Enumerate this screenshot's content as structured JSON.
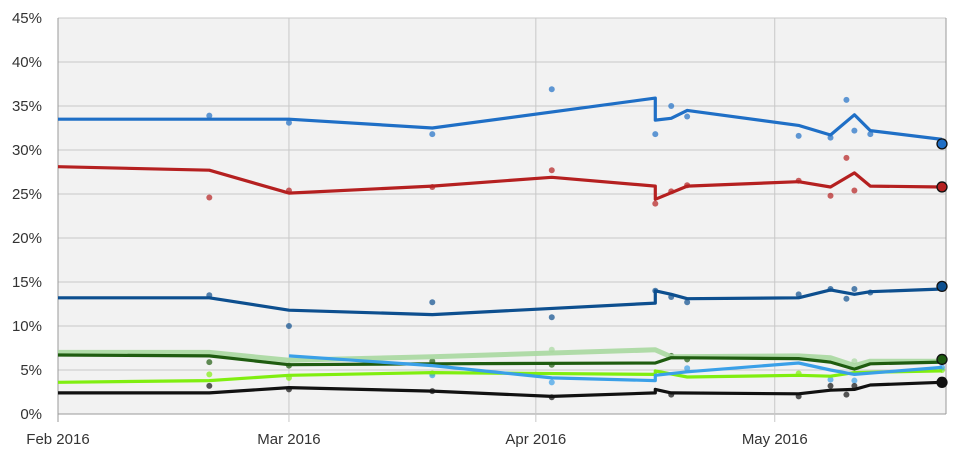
{
  "chart_data": {
    "type": "line",
    "title": "",
    "xlabel": "",
    "ylabel": "",
    "ylim": [
      0,
      45
    ],
    "xlim": [
      "2016-02-01",
      "2016-05-22"
    ],
    "grid": true,
    "legend": "none",
    "y_ticks": [
      "0%",
      "5%",
      "10%",
      "15%",
      "20%",
      "25%",
      "30%",
      "35%",
      "40%",
      "45%"
    ],
    "x_ticks": [
      {
        "date": "2016-02-01",
        "label": "Feb 2016"
      },
      {
        "date": "2016-03-01",
        "label": "Mar 2016"
      },
      {
        "date": "2016-04-01",
        "label": "Apr 2016"
      },
      {
        "date": "2016-05-01",
        "label": "May 2016"
      }
    ],
    "series": [
      {
        "color": "#1f6fc6",
        "end_marker": true,
        "line": [
          [
            "2016-02-01",
            33.5
          ],
          [
            "2016-02-20",
            33.5
          ],
          [
            "2016-03-01",
            33.5
          ],
          [
            "2016-03-19",
            32.5
          ],
          [
            "2016-04-16",
            35.9
          ],
          [
            "2016-04-16",
            33.4
          ],
          [
            "2016-04-18",
            33.6
          ],
          [
            "2016-04-20",
            34.5
          ],
          [
            "2016-05-04",
            32.8
          ],
          [
            "2016-05-08",
            31.7
          ],
          [
            "2016-05-11",
            34.0
          ],
          [
            "2016-05-13",
            32.2
          ],
          [
            "2016-05-22",
            31.2
          ]
        ],
        "points": [
          [
            "2016-02-20",
            33.9
          ],
          [
            "2016-03-01",
            33.1
          ],
          [
            "2016-03-19",
            31.8
          ],
          [
            "2016-04-03",
            36.9
          ],
          [
            "2016-04-16",
            31.8
          ],
          [
            "2016-04-18",
            35.0
          ],
          [
            "2016-04-20",
            33.8
          ],
          [
            "2016-05-04",
            31.6
          ],
          [
            "2016-05-08",
            31.4
          ],
          [
            "2016-05-10",
            35.7
          ],
          [
            "2016-05-11",
            32.2
          ],
          [
            "2016-05-13",
            31.8
          ],
          [
            "2016-05-22",
            30.7
          ]
        ]
      },
      {
        "color": "#b52020",
        "end_marker": true,
        "line": [
          [
            "2016-02-01",
            28.1
          ],
          [
            "2016-02-20",
            27.7
          ],
          [
            "2016-03-01",
            25.1
          ],
          [
            "2016-03-19",
            25.9
          ],
          [
            "2016-04-03",
            26.9
          ],
          [
            "2016-04-16",
            25.9
          ],
          [
            "2016-04-16",
            24.4
          ],
          [
            "2016-04-20",
            25.9
          ],
          [
            "2016-05-04",
            26.4
          ],
          [
            "2016-05-08",
            25.8
          ],
          [
            "2016-05-11",
            27.4
          ],
          [
            "2016-05-13",
            25.9
          ],
          [
            "2016-05-22",
            25.8
          ]
        ],
        "points": [
          [
            "2016-02-20",
            24.6
          ],
          [
            "2016-03-01",
            25.4
          ],
          [
            "2016-03-19",
            25.8
          ],
          [
            "2016-04-03",
            27.7
          ],
          [
            "2016-04-16",
            23.9
          ],
          [
            "2016-04-18",
            25.3
          ],
          [
            "2016-04-20",
            26.0
          ],
          [
            "2016-05-04",
            26.5
          ],
          [
            "2016-05-08",
            24.8
          ],
          [
            "2016-05-10",
            29.1
          ],
          [
            "2016-05-11",
            25.4
          ],
          [
            "2016-05-22",
            25.8
          ]
        ]
      },
      {
        "color": "#0d4f8f",
        "end_marker": true,
        "line": [
          [
            "2016-02-01",
            13.2
          ],
          [
            "2016-02-20",
            13.2
          ],
          [
            "2016-03-01",
            11.8
          ],
          [
            "2016-03-19",
            11.3
          ],
          [
            "2016-04-16",
            12.6
          ],
          [
            "2016-04-16",
            14.0
          ],
          [
            "2016-04-18",
            13.6
          ],
          [
            "2016-04-20",
            13.1
          ],
          [
            "2016-05-04",
            13.2
          ],
          [
            "2016-05-08",
            14.1
          ],
          [
            "2016-05-11",
            13.6
          ],
          [
            "2016-05-13",
            13.9
          ],
          [
            "2016-05-22",
            14.2
          ]
        ],
        "points": [
          [
            "2016-02-20",
            13.5
          ],
          [
            "2016-03-01",
            10.0
          ],
          [
            "2016-03-19",
            12.7
          ],
          [
            "2016-04-03",
            11.0
          ],
          [
            "2016-04-16",
            14.0
          ],
          [
            "2016-04-18",
            13.3
          ],
          [
            "2016-04-20",
            12.7
          ],
          [
            "2016-05-04",
            13.6
          ],
          [
            "2016-05-08",
            14.2
          ],
          [
            "2016-05-10",
            13.1
          ],
          [
            "2016-05-11",
            14.2
          ],
          [
            "2016-05-13",
            13.8
          ],
          [
            "2016-05-22",
            14.5
          ]
        ]
      },
      {
        "color": "#a8d8a0",
        "end_marker": false,
        "line": [
          [
            "2016-02-01",
            7.0
          ],
          [
            "2016-02-20",
            7.0
          ],
          [
            "2016-03-01",
            6.1
          ],
          [
            "2016-03-19",
            6.5
          ],
          [
            "2016-04-16",
            7.3
          ],
          [
            "2016-04-18",
            6.5
          ],
          [
            "2016-05-04",
            6.6
          ],
          [
            "2016-05-08",
            6.4
          ],
          [
            "2016-05-11",
            5.5
          ],
          [
            "2016-05-13",
            6.0
          ],
          [
            "2016-05-22",
            6.0
          ]
        ],
        "points": [
          [
            "2016-04-03",
            7.3
          ],
          [
            "2016-05-11",
            6.0
          ]
        ]
      },
      {
        "color": "#1f5c10",
        "end_marker": true,
        "line": [
          [
            "2016-02-01",
            6.7
          ],
          [
            "2016-02-20",
            6.6
          ],
          [
            "2016-03-01",
            5.6
          ],
          [
            "2016-03-19",
            5.7
          ],
          [
            "2016-04-16",
            5.8
          ],
          [
            "2016-04-18",
            6.4
          ],
          [
            "2016-05-04",
            6.3
          ],
          [
            "2016-05-08",
            5.9
          ],
          [
            "2016-05-11",
            5.1
          ],
          [
            "2016-05-13",
            5.7
          ],
          [
            "2016-05-22",
            5.9
          ]
        ],
        "points": [
          [
            "2016-02-20",
            5.9
          ],
          [
            "2016-03-01",
            5.5
          ],
          [
            "2016-03-19",
            6.0
          ],
          [
            "2016-04-03",
            5.6
          ],
          [
            "2016-04-18",
            6.6
          ],
          [
            "2016-04-20",
            6.2
          ],
          [
            "2016-05-22",
            6.2
          ]
        ]
      },
      {
        "color": "#80ee10",
        "end_marker": false,
        "line": [
          [
            "2016-02-01",
            3.6
          ],
          [
            "2016-02-20",
            3.8
          ],
          [
            "2016-03-01",
            4.4
          ],
          [
            "2016-03-19",
            4.7
          ],
          [
            "2016-04-16",
            4.5
          ],
          [
            "2016-04-16",
            4.9
          ],
          [
            "2016-04-20",
            4.2
          ],
          [
            "2016-05-04",
            4.4
          ],
          [
            "2016-05-08",
            4.3
          ],
          [
            "2016-05-11",
            4.7
          ],
          [
            "2016-05-22",
            4.9
          ]
        ],
        "points": [
          [
            "2016-02-20",
            4.5
          ],
          [
            "2016-03-01",
            4.1
          ],
          [
            "2016-03-19",
            4.6
          ],
          [
            "2016-05-04",
            4.6
          ],
          [
            "2016-05-22",
            5.0
          ]
        ]
      },
      {
        "color": "#3aa0e8",
        "end_marker": false,
        "line": [
          [
            "2016-03-01",
            6.6
          ],
          [
            "2016-03-19",
            5.5
          ],
          [
            "2016-04-03",
            4.1
          ],
          [
            "2016-04-16",
            3.8
          ],
          [
            "2016-04-16",
            4.4
          ],
          [
            "2016-04-20",
            4.8
          ],
          [
            "2016-05-04",
            5.8
          ],
          [
            "2016-05-08",
            5.0
          ],
          [
            "2016-05-11",
            4.5
          ],
          [
            "2016-05-22",
            5.3
          ]
        ],
        "points": [
          [
            "2016-03-19",
            4.4
          ],
          [
            "2016-04-03",
            3.6
          ],
          [
            "2016-04-20",
            5.2
          ],
          [
            "2016-05-08",
            3.9
          ],
          [
            "2016-05-11",
            3.8
          ],
          [
            "2016-05-22",
            5.3
          ]
        ]
      },
      {
        "color": "#111111",
        "end_marker": true,
        "line": [
          [
            "2016-02-01",
            2.4
          ],
          [
            "2016-02-20",
            2.4
          ],
          [
            "2016-03-01",
            3.0
          ],
          [
            "2016-03-19",
            2.6
          ],
          [
            "2016-04-03",
            2.0
          ],
          [
            "2016-04-16",
            2.4
          ],
          [
            "2016-04-16",
            2.8
          ],
          [
            "2016-04-18",
            2.4
          ],
          [
            "2016-05-04",
            2.3
          ],
          [
            "2016-05-08",
            2.7
          ],
          [
            "2016-05-11",
            2.8
          ],
          [
            "2016-05-13",
            3.3
          ],
          [
            "2016-05-22",
            3.6
          ]
        ],
        "points": [
          [
            "2016-02-20",
            3.2
          ],
          [
            "2016-03-01",
            2.8
          ],
          [
            "2016-03-19",
            2.6
          ],
          [
            "2016-04-03",
            1.9
          ],
          [
            "2016-04-18",
            2.2
          ],
          [
            "2016-05-04",
            2.0
          ],
          [
            "2016-05-08",
            3.2
          ],
          [
            "2016-05-10",
            2.2
          ],
          [
            "2016-05-11",
            3.2
          ],
          [
            "2016-05-22",
            3.6
          ]
        ]
      }
    ]
  }
}
